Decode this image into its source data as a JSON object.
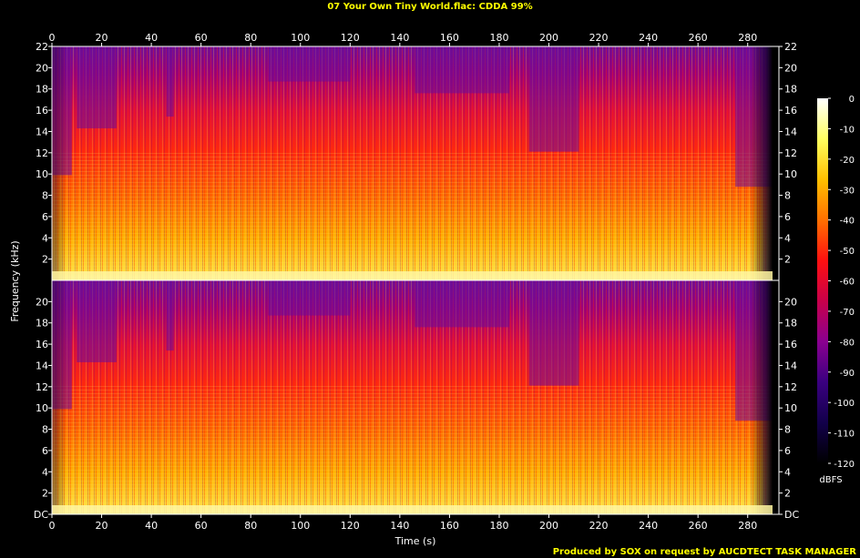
{
  "title": "07 Your Own Tiny World.flac: CDDA 99%",
  "footer": "Produced by SOX on request by AUCDTECT TASK MANAGER",
  "colors": {
    "background": "#000000",
    "text": "#ffffff",
    "title_text": "#ffff00",
    "footer_text": "#ffff00",
    "axis": "#ffffff"
  },
  "chart_data": {
    "type": "heatmap",
    "title": "07 Your Own Tiny World.flac: CDDA 99%",
    "xlabel": "Time (s)",
    "ylabel": "Frequency (kHz)",
    "xlim": [
      0,
      290
    ],
    "ylim": [
      0,
      22
    ],
    "x_ticks": [
      "0",
      "20",
      "40",
      "60",
      "80",
      "100",
      "120",
      "140",
      "160",
      "180",
      "200",
      "220",
      "240",
      "260",
      "280"
    ],
    "y_ticks_top": [
      "2",
      "4",
      "6",
      "8",
      "10",
      "12",
      "14",
      "16",
      "18",
      "20",
      "22"
    ],
    "y_ticks_bottom": [
      "DC",
      "2",
      "4",
      "6",
      "8",
      "10",
      "12",
      "14",
      "16",
      "18",
      "20"
    ],
    "channels": [
      "channel 1",
      "channel 2"
    ],
    "colorbar": {
      "label": "dBFS",
      "ticks": [
        "0",
        "-10",
        "-20",
        "-30",
        "-40",
        "-50",
        "-60",
        "-70",
        "-80",
        "-90",
        "-100",
        "-110",
        "-120"
      ],
      "range": [
        -120,
        0
      ],
      "stops": [
        "#000000",
        "#12004a",
        "#3a0080",
        "#8a0090",
        "#c8004a",
        "#ff1010",
        "#ff7000",
        "#ffc000",
        "#ffff60",
        "#ffffff"
      ]
    },
    "grid": false
  }
}
